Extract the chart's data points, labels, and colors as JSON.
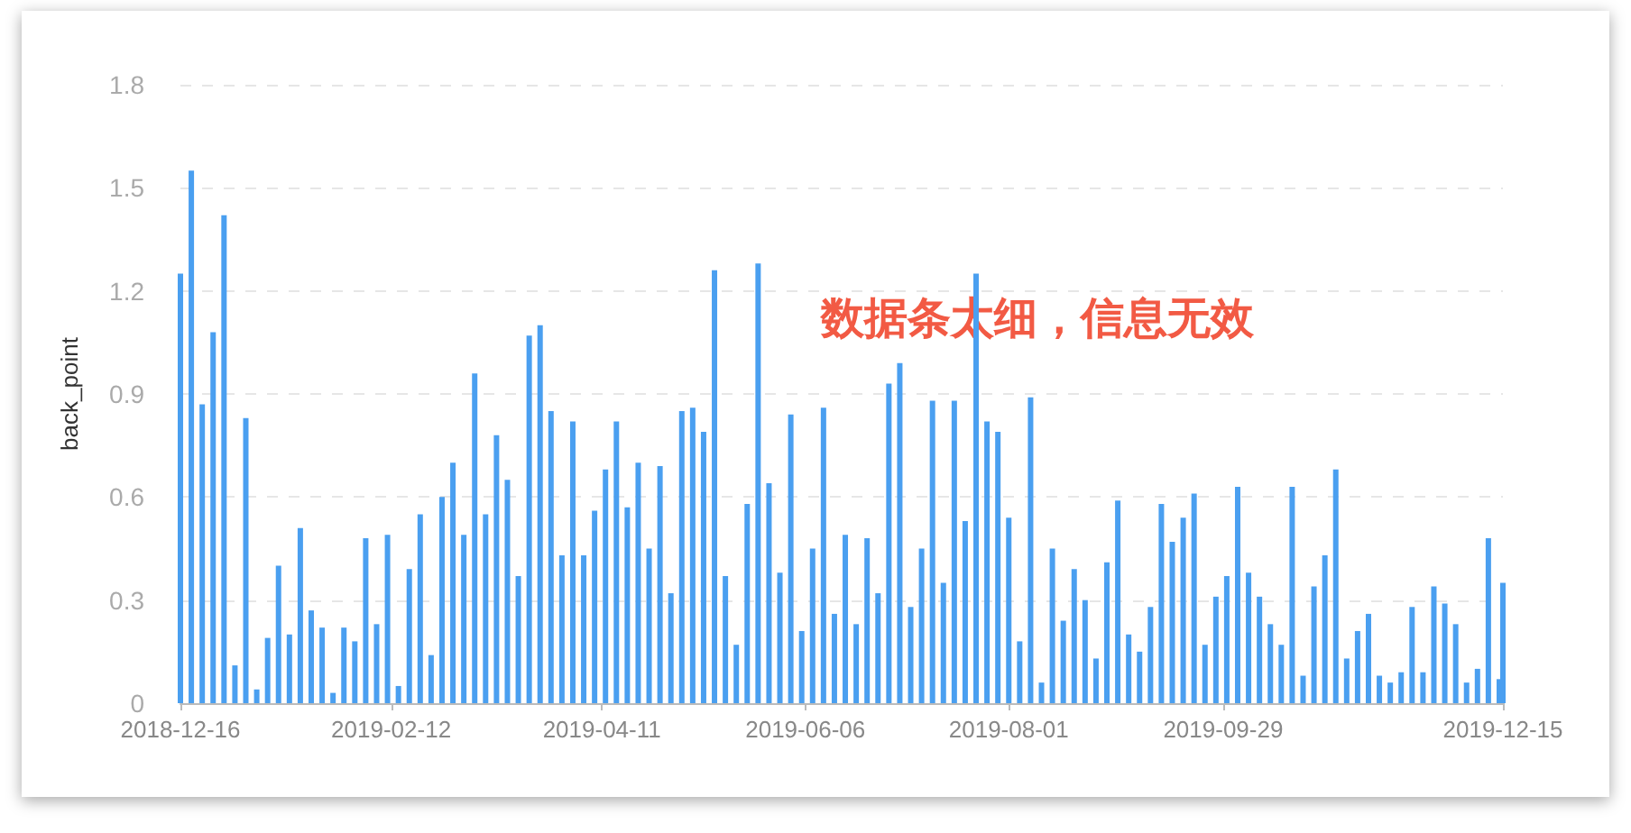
{
  "chart_data": {
    "type": "bar",
    "ylabel": "back_point",
    "annotations": [
      "数据条太细，信息无效"
    ],
    "x": [
      "2018-12-16",
      "2018-12-19",
      "2018-12-22",
      "2018-12-25",
      "2018-12-28",
      "2018-12-31",
      "2019-01-03",
      "2019-01-06",
      "2019-01-09",
      "2019-01-12",
      "2019-01-15",
      "2019-01-18",
      "2019-01-21",
      "2019-01-24",
      "2019-01-27",
      "2019-01-30",
      "2019-02-02",
      "2019-02-05",
      "2019-02-08",
      "2019-02-11",
      "2019-02-14",
      "2019-02-17",
      "2019-02-20",
      "2019-02-23",
      "2019-02-26",
      "2019-03-01",
      "2019-03-04",
      "2019-03-07",
      "2019-03-10",
      "2019-03-13",
      "2019-03-16",
      "2019-03-19",
      "2019-03-22",
      "2019-03-25",
      "2019-03-28",
      "2019-03-31",
      "2019-04-03",
      "2019-04-06",
      "2019-04-09",
      "2019-04-12",
      "2019-04-15",
      "2019-04-18",
      "2019-04-21",
      "2019-04-24",
      "2019-04-27",
      "2019-04-30",
      "2019-05-03",
      "2019-05-06",
      "2019-05-09",
      "2019-05-12",
      "2019-05-15",
      "2019-05-18",
      "2019-05-21",
      "2019-05-24",
      "2019-05-27",
      "2019-05-30",
      "2019-06-02",
      "2019-06-05",
      "2019-06-08",
      "2019-06-11",
      "2019-06-14",
      "2019-06-17",
      "2019-06-20",
      "2019-06-23",
      "2019-06-26",
      "2019-06-29",
      "2019-07-02",
      "2019-07-05",
      "2019-07-08",
      "2019-07-11",
      "2019-07-14",
      "2019-07-17",
      "2019-07-20",
      "2019-07-23",
      "2019-07-26",
      "2019-07-29",
      "2019-08-01",
      "2019-08-04",
      "2019-08-07",
      "2019-08-10",
      "2019-08-13",
      "2019-08-16",
      "2019-08-19",
      "2019-08-22",
      "2019-08-25",
      "2019-08-28",
      "2019-08-31",
      "2019-09-03",
      "2019-09-06",
      "2019-09-09",
      "2019-09-12",
      "2019-09-15",
      "2019-09-18",
      "2019-09-21",
      "2019-09-24",
      "2019-09-27",
      "2019-09-30",
      "2019-10-03",
      "2019-10-06",
      "2019-10-09",
      "2019-10-12",
      "2019-10-15",
      "2019-10-18",
      "2019-10-21",
      "2019-10-24",
      "2019-10-27",
      "2019-10-30",
      "2019-11-02",
      "2019-11-05",
      "2019-11-08",
      "2019-11-11",
      "2019-11-14",
      "2019-11-17",
      "2019-11-20",
      "2019-11-23",
      "2019-11-26",
      "2019-11-29",
      "2019-12-02",
      "2019-12-05",
      "2019-12-08",
      "2019-12-11",
      "2019-12-14",
      "2019-12-15"
    ],
    "values": [
      1.25,
      1.55,
      0.87,
      1.08,
      1.42,
      0.11,
      0.83,
      0.04,
      0.19,
      0.4,
      0.2,
      0.51,
      0.27,
      0.22,
      0.03,
      0.22,
      0.18,
      0.48,
      0.23,
      0.49,
      0.05,
      0.39,
      0.55,
      0.14,
      0.6,
      0.7,
      0.49,
      0.96,
      0.55,
      0.78,
      0.65,
      0.37,
      1.07,
      1.1,
      0.85,
      0.43,
      0.82,
      0.43,
      0.56,
      0.68,
      0.82,
      0.57,
      0.7,
      0.45,
      0.69,
      0.32,
      0.85,
      0.86,
      0.79,
      1.26,
      0.37,
      0.17,
      0.58,
      1.28,
      0.64,
      0.38,
      0.84,
      0.21,
      0.45,
      0.86,
      0.26,
      0.49,
      0.23,
      0.48,
      0.32,
      0.93,
      0.99,
      0.28,
      0.45,
      0.88,
      0.35,
      0.88,
      0.53,
      1.25,
      0.82,
      0.79,
      0.54,
      0.18,
      0.89,
      0.06,
      0.45,
      0.24,
      0.39,
      0.3,
      0.13,
      0.41,
      0.59,
      0.2,
      0.15,
      0.28,
      0.58,
      0.47,
      0.54,
      0.61,
      0.17,
      0.31,
      0.37,
      0.63,
      0.38,
      0.31,
      0.23,
      0.17,
      0.63,
      0.08,
      0.34,
      0.43,
      0.68,
      0.13,
      0.21,
      0.26,
      0.08,
      0.06,
      0.09,
      0.28,
      0.09,
      0.34,
      0.29,
      0.23,
      0.06,
      0.1,
      0.48,
      0.07,
      0.35
    ],
    "color": "#4a9ff0",
    "xlim": [
      "2018-12-16",
      "2019-12-15"
    ],
    "xticks": [
      "2018-12-16",
      "2019-02-12",
      "2019-04-11",
      "2019-06-06",
      "2019-08-01",
      "2019-09-29",
      "2019-12-15"
    ],
    "ylim": [
      0,
      1.8
    ],
    "yticks": [
      0,
      0.3,
      0.6,
      0.9,
      1.2,
      1.5,
      1.8
    ],
    "grid": "y"
  }
}
